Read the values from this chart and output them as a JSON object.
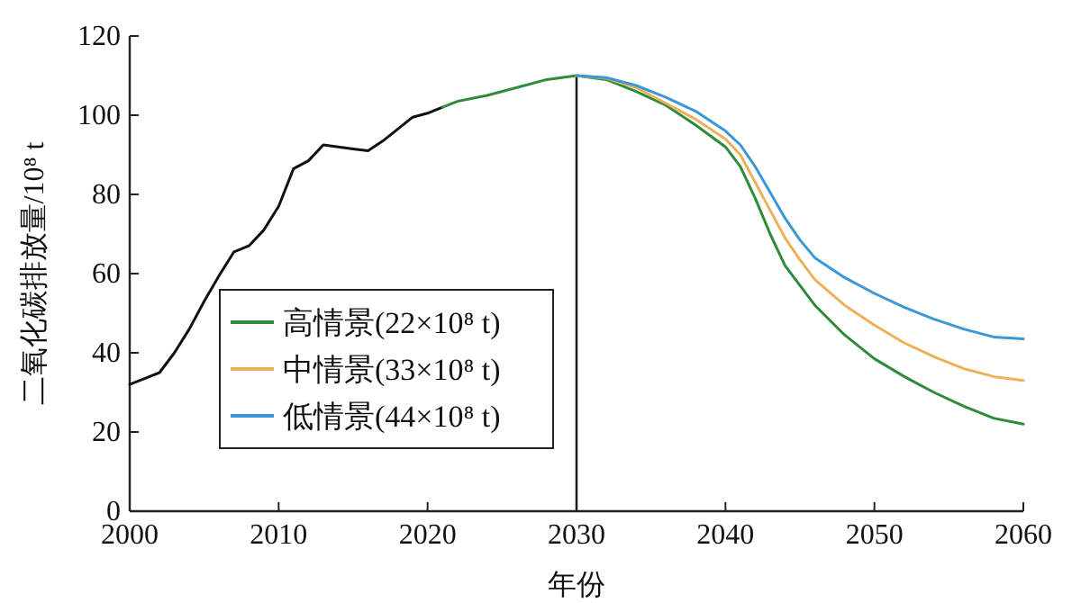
{
  "chart_data": {
    "type": "line",
    "xlabel": "年份",
    "ylabel": "二氧化碳排放量/10⁸ t",
    "xlim": [
      2000,
      2060
    ],
    "ylim": [
      0,
      120
    ],
    "xticks": [
      2000,
      2010,
      2020,
      2030,
      2040,
      2050,
      2060
    ],
    "yticks": [
      0,
      20,
      40,
      60,
      80,
      100,
      120
    ],
    "grid": false,
    "legend": "bottom left",
    "marker": "none",
    "line_style": "solid",
    "ref_lines": [
      {
        "axis": "x",
        "value": 2030,
        "color": "#222222"
      }
    ],
    "series": [
      {
        "color": "#111111",
        "x": [
          2000,
          2001,
          2002,
          2003,
          2004,
          2005,
          2006,
          2007,
          2008,
          2009,
          2010,
          2011,
          2012,
          2013,
          2014,
          2015,
          2016,
          2017,
          2018,
          2019,
          2020,
          2021
        ],
        "values": [
          32,
          33.5,
          35,
          40,
          46,
          53,
          59.5,
          65.5,
          67,
          71,
          77,
          86.5,
          88.5,
          92.5,
          92,
          91.5,
          91,
          93.5,
          96.5,
          99.5,
          100.5,
          102
        ]
      },
      {
        "name": "高情景(22×10⁸ t)",
        "color": "#2e8b3a",
        "x": [
          2021,
          2022,
          2024,
          2026,
          2028,
          2030,
          2032,
          2034,
          2036,
          2038,
          2040,
          2041,
          2042,
          2043,
          2044,
          2045,
          2046,
          2048,
          2050,
          2052,
          2054,
          2056,
          2058,
          2060
        ],
        "values": [
          102,
          103.5,
          105,
          107,
          109,
          110,
          109,
          106,
          102.5,
          97.5,
          92,
          87,
          79,
          70,
          62,
          57,
          52,
          44.5,
          38.5,
          34,
          30,
          26.5,
          23.5,
          22
        ]
      },
      {
        "name": "中情景(33×10⁸ t)",
        "color": "#eeb058",
        "x": [
          2030,
          2032,
          2034,
          2036,
          2038,
          2040,
          2041,
          2042,
          2043,
          2044,
          2045,
          2046,
          2048,
          2050,
          2052,
          2054,
          2056,
          2058,
          2060
        ],
        "values": [
          110,
          109.3,
          107,
          103,
          99,
          94,
          90,
          83,
          76,
          69,
          63.5,
          58.5,
          52,
          47,
          42.5,
          39,
          36,
          34,
          33
        ]
      },
      {
        "name": "低情景(44×10⁸ t)",
        "color": "#3b97d6",
        "x": [
          2030,
          2032,
          2034,
          2036,
          2038,
          2040,
          2041,
          2042,
          2043,
          2044,
          2045,
          2046,
          2048,
          2050,
          2052,
          2054,
          2056,
          2058,
          2060
        ],
        "values": [
          110,
          109.5,
          107.5,
          104.5,
          101,
          96,
          92.5,
          87,
          80.5,
          74,
          68.5,
          64,
          59,
          55,
          51.5,
          48.5,
          46,
          44,
          43.5
        ]
      }
    ]
  }
}
